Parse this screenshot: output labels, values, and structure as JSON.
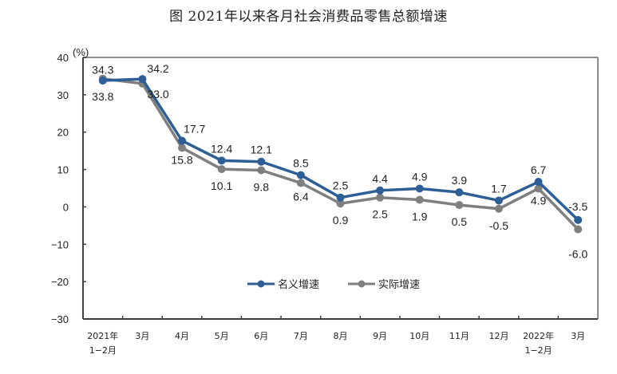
{
  "chart_data": {
    "type": "line",
    "title": "图  2021年以来各月社会消费品零售总额增速",
    "ylabel": "(%)",
    "xlabel": "",
    "ylim": [
      -30,
      40
    ],
    "yticks": [
      40,
      30,
      20,
      10,
      0,
      -10,
      -20,
      -30
    ],
    "ytick_labels": [
      "40",
      "30",
      "20",
      "10",
      "0",
      "−10",
      "−20",
      "−30"
    ],
    "categories": [
      [
        "2021年",
        "1−2月"
      ],
      [
        "3月"
      ],
      [
        "4月"
      ],
      [
        "5月"
      ],
      [
        "6月"
      ],
      [
        "7月"
      ],
      [
        "8月"
      ],
      [
        "9月"
      ],
      [
        "10月"
      ],
      [
        "11月"
      ],
      [
        "12月"
      ],
      [
        "2022年",
        "1−2月"
      ],
      [
        "3月"
      ]
    ],
    "grid": false,
    "legend_position": "bottom-center-inside",
    "series": [
      {
        "name": "名义增速",
        "color": "#2e5e96",
        "values": [
          33.8,
          34.2,
          17.7,
          12.4,
          12.1,
          8.5,
          2.5,
          4.4,
          4.9,
          3.9,
          1.7,
          6.7,
          -3.5
        ],
        "labels": [
          "33.8",
          "34.2",
          "17.7",
          "12.4",
          "12.1",
          "8.5",
          "2.5",
          "4.4",
          "4.9",
          "3.9",
          "1.7",
          "6.7",
          "-3.5"
        ]
      },
      {
        "name": "实际增速",
        "color": "#7f7f7f",
        "values": [
          34.3,
          33.0,
          15.8,
          10.1,
          9.8,
          6.4,
          0.9,
          2.5,
          1.9,
          0.5,
          -0.5,
          4.9,
          -6.0
        ],
        "labels": [
          "34.3",
          "33.0",
          "15.8",
          "10.1",
          "9.8",
          "6.4",
          "0.9",
          "2.5",
          "1.9",
          "0.5",
          "-0.5",
          "4.9",
          "-6.0"
        ]
      }
    ]
  }
}
